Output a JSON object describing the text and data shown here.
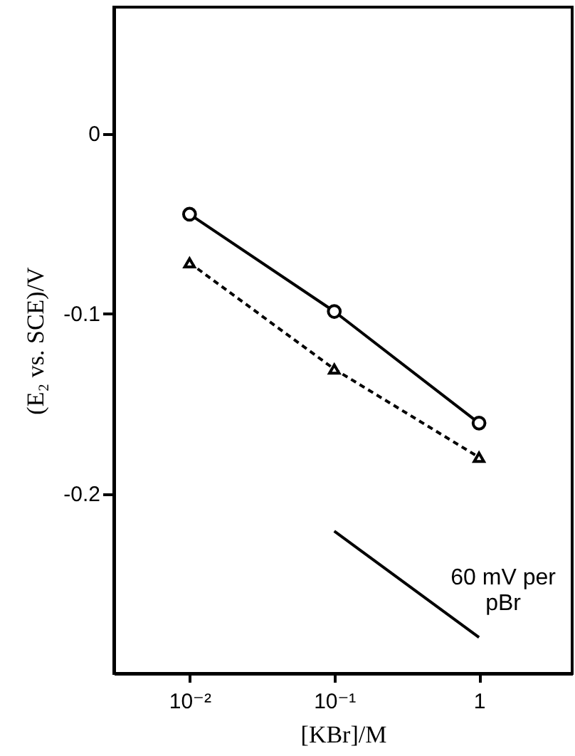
{
  "chart_data": {
    "type": "line",
    "xlabel": "[KBr]/M",
    "ylabel": "(E₂ vs. SCE)/V",
    "log": "x",
    "xlim": [
      0.003,
      4.4
    ],
    "xticks": [
      {
        "value": 0.01,
        "label": "10⁻²"
      },
      {
        "value": 0.1,
        "label": "10⁻¹"
      },
      1
    ],
    "ylim": [
      -0.3,
      0.07
    ],
    "yticks": [
      0,
      -0.1,
      -0.2
    ],
    "x": [
      0.01,
      0.1,
      1
    ],
    "series": [
      {
        "color": "#000000",
        "marker": "circle",
        "line_style": "solid",
        "values": [
          -0.045,
          -0.099,
          -0.161
        ]
      },
      {
        "color": "#000000",
        "marker": "triangle",
        "line_style": "dashed",
        "values": [
          -0.072,
          -0.131,
          -0.18
        ]
      },
      {
        "type": "line",
        "color": "#000000",
        "marker": "none",
        "line_style": "solid",
        "x": [
          0.1,
          1
        ],
        "values": [
          -0.221,
          -0.28
        ]
      }
    ],
    "annotations": [
      "60 mV per pBr"
    ]
  }
}
